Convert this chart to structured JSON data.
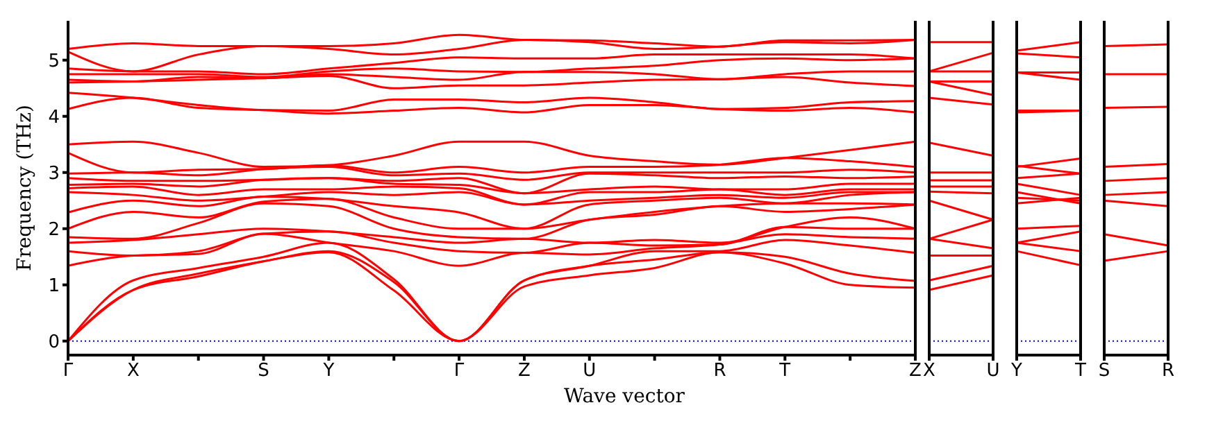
{
  "chart_data": [
    {
      "type": "line",
      "ylabel": "Frequency (THz)",
      "xlabel": "Wave vector",
      "categories": [
        "Γ",
        "X",
        null,
        "S",
        "Y",
        null,
        "Γ",
        "Z",
        "U",
        null,
        "R",
        "T",
        null,
        "Z"
      ],
      "ylim": [
        -0.25,
        5.7
      ],
      "yticks": [
        0,
        1,
        2,
        3,
        4,
        5
      ],
      "ref_lines": [
        {
          "axis": "y",
          "value": 0,
          "color": "#0000ff",
          "line_style": "dotted"
        }
      ],
      "series": [
        {
          "color": "#ff0000",
          "values": [
            0,
            0.91,
            1.15,
            1.42,
            1.58,
            0.9,
            0,
            0.97,
            1.17,
            1.3,
            1.58,
            1.38,
            1.0,
            0.95
          ]
        },
        {
          "color": "#ff0000",
          "values": [
            0,
            0.91,
            1.2,
            1.42,
            1.6,
            1.05,
            0,
            1.08,
            1.34,
            1.45,
            1.58,
            1.5,
            1.2,
            1.07
          ]
        },
        {
          "color": "#ff0000",
          "values": [
            0,
            1.08,
            1.3,
            1.5,
            1.75,
            1.1,
            0,
            1.08,
            1.34,
            1.6,
            1.6,
            1.8,
            1.7,
            1.57
          ]
        },
        {
          "color": "#ff0000",
          "values": [
            1.34,
            1.52,
            1.55,
            1.91,
            1.75,
            1.6,
            1.34,
            1.57,
            1.54,
            1.65,
            1.72,
            1.9,
            1.85,
            1.82
          ]
        },
        {
          "color": "#ff0000",
          "values": [
            1.6,
            1.52,
            1.6,
            1.91,
            1.95,
            1.75,
            1.6,
            1.57,
            1.75,
            1.7,
            1.72,
            2.03,
            2.0,
            2.0
          ]
        },
        {
          "color": "#ff0000",
          "values": [
            1.75,
            1.8,
            1.9,
            2.0,
            1.95,
            1.85,
            1.75,
            1.82,
            1.75,
            1.8,
            1.75,
            2.03,
            2.2,
            2.0
          ]
        },
        {
          "color": "#ff0000",
          "values": [
            1.85,
            1.82,
            2.1,
            2.45,
            2.4,
            2.0,
            1.85,
            1.82,
            2.16,
            2.25,
            2.4,
            2.3,
            2.35,
            2.43
          ]
        },
        {
          "color": "#ff0000",
          "values": [
            2.0,
            2.3,
            2.2,
            2.48,
            2.53,
            2.2,
            2.0,
            2.0,
            2.16,
            2.3,
            2.4,
            2.45,
            2.45,
            2.43
          ]
        },
        {
          "color": "#ff0000",
          "values": [
            2.29,
            2.5,
            2.4,
            2.57,
            2.53,
            2.4,
            2.29,
            2.0,
            2.43,
            2.5,
            2.55,
            2.45,
            2.6,
            2.65
          ]
        },
        {
          "color": "#ff0000",
          "values": [
            2.65,
            2.6,
            2.5,
            2.57,
            2.65,
            2.6,
            2.65,
            2.43,
            2.5,
            2.55,
            2.6,
            2.55,
            2.65,
            2.65
          ]
        },
        {
          "color": "#ff0000",
          "values": [
            2.72,
            2.75,
            2.6,
            2.7,
            2.7,
            2.75,
            2.72,
            2.43,
            2.65,
            2.65,
            2.7,
            2.6,
            2.7,
            2.7
          ]
        },
        {
          "color": "#ff0000",
          "values": [
            2.78,
            2.8,
            2.75,
            2.87,
            2.9,
            2.8,
            2.78,
            2.63,
            2.7,
            2.75,
            2.7,
            2.7,
            2.8,
            2.8
          ]
        },
        {
          "color": "#ff0000",
          "values": [
            2.9,
            2.85,
            2.85,
            2.87,
            2.9,
            2.85,
            2.9,
            2.63,
            2.98,
            2.95,
            2.9,
            2.93,
            2.9,
            2.93
          ]
        },
        {
          "color": "#ff0000",
          "values": [
            2.98,
            3.0,
            2.95,
            3.06,
            3.1,
            2.95,
            2.98,
            2.87,
            3.0,
            3.0,
            3.0,
            3.0,
            3.05,
            3.0
          ]
        },
        {
          "color": "#ff0000",
          "values": [
            3.35,
            3.0,
            3.05,
            3.06,
            3.13,
            3.0,
            3.1,
            3.0,
            3.1,
            3.1,
            3.14,
            3.26,
            3.2,
            3.1
          ]
        },
        {
          "color": "#ff0000",
          "values": [
            3.5,
            3.55,
            3.35,
            3.1,
            3.13,
            3.3,
            3.55,
            3.55,
            3.3,
            3.2,
            3.14,
            3.26,
            3.4,
            3.55
          ]
        },
        {
          "color": "#ff0000",
          "values": [
            4.13,
            4.33,
            4.15,
            4.11,
            4.05,
            4.1,
            4.15,
            4.07,
            4.2,
            4.2,
            4.13,
            4.1,
            4.15,
            4.07
          ]
        },
        {
          "color": "#ff0000",
          "values": [
            4.42,
            4.33,
            4.2,
            4.11,
            4.1,
            4.3,
            4.3,
            4.25,
            4.33,
            4.25,
            4.13,
            4.15,
            4.25,
            4.27
          ]
        },
        {
          "color": "#ff0000",
          "values": [
            4.6,
            4.62,
            4.65,
            4.68,
            4.72,
            4.5,
            4.55,
            4.55,
            4.6,
            4.65,
            4.66,
            4.7,
            4.6,
            4.54
          ]
        },
        {
          "color": "#ff0000",
          "values": [
            4.65,
            4.62,
            4.7,
            4.68,
            4.75,
            4.7,
            4.65,
            4.79,
            4.79,
            4.75,
            4.66,
            4.75,
            4.8,
            4.8
          ]
        },
        {
          "color": "#ff0000",
          "values": [
            4.75,
            4.75,
            4.75,
            4.7,
            4.8,
            4.85,
            4.8,
            4.79,
            4.85,
            4.9,
            5.0,
            5.03,
            5.0,
            5.03
          ]
        },
        {
          "color": "#ff0000",
          "values": [
            4.85,
            4.8,
            4.8,
            4.75,
            4.85,
            4.95,
            5.05,
            5.03,
            5.03,
            5.1,
            5.1,
            5.1,
            5.1,
            5.03
          ]
        },
        {
          "color": "#ff0000",
          "values": [
            5.15,
            4.8,
            5.1,
            5.25,
            5.2,
            5.1,
            5.2,
            5.36,
            5.32,
            5.2,
            5.24,
            5.32,
            5.3,
            5.36
          ]
        },
        {
          "color": "#ff0000",
          "values": [
            5.2,
            5.3,
            5.25,
            5.25,
            5.25,
            5.3,
            5.45,
            5.36,
            5.35,
            5.3,
            5.24,
            5.35,
            5.35,
            5.36
          ]
        }
      ]
    },
    {
      "type": "line",
      "categories": [
        "X",
        "U"
      ],
      "ylim": [
        -0.25,
        5.7
      ],
      "yticks": [
        0,
        1,
        2,
        3,
        4,
        5
      ],
      "tick_labels": "x",
      "ref_lines": [
        {
          "axis": "y",
          "value": 0,
          "color": "#0000ff",
          "line_style": "dotted"
        }
      ],
      "series": [
        {
          "color": "#ff0000",
          "values": [
            0.91,
            1.17
          ]
        },
        {
          "color": "#ff0000",
          "values": [
            1.08,
            1.34
          ]
        },
        {
          "color": "#ff0000",
          "values": [
            1.52,
            1.52
          ]
        },
        {
          "color": "#ff0000",
          "values": [
            1.82,
            1.65
          ]
        },
        {
          "color": "#ff0000",
          "values": [
            1.82,
            2.16
          ]
        },
        {
          "color": "#ff0000",
          "values": [
            2.5,
            2.16
          ]
        },
        {
          "color": "#ff0000",
          "values": [
            2.66,
            2.63
          ]
        },
        {
          "color": "#ff0000",
          "values": [
            2.75,
            2.75
          ]
        },
        {
          "color": "#ff0000",
          "values": [
            2.86,
            2.86
          ]
        },
        {
          "color": "#ff0000",
          "values": [
            3.0,
            3.0
          ]
        },
        {
          "color": "#ff0000",
          "values": [
            3.53,
            3.3
          ]
        },
        {
          "color": "#ff0000",
          "values": [
            4.33,
            4.21
          ]
        },
        {
          "color": "#ff0000",
          "values": [
            4.62,
            4.38
          ]
        },
        {
          "color": "#ff0000",
          "values": [
            4.62,
            4.62
          ]
        },
        {
          "color": "#ff0000",
          "values": [
            4.8,
            4.8
          ]
        },
        {
          "color": "#ff0000",
          "values": [
            4.8,
            5.13
          ]
        },
        {
          "color": "#ff0000",
          "values": [
            5.32,
            5.32
          ]
        }
      ]
    },
    {
      "type": "line",
      "categories": [
        "Y",
        "T"
      ],
      "ylim": [
        -0.25,
        5.7
      ],
      "yticks": [
        0,
        1,
        2,
        3,
        4,
        5
      ],
      "tick_labels": "x",
      "ref_lines": [
        {
          "axis": "y",
          "value": 0,
          "color": "#0000ff",
          "line_style": "dotted"
        }
      ],
      "series": [
        {
          "color": "#ff0000",
          "values": [
            1.6,
            1.35
          ]
        },
        {
          "color": "#ff0000",
          "values": [
            1.75,
            1.6
          ]
        },
        {
          "color": "#ff0000",
          "values": [
            1.75,
            1.95
          ]
        },
        {
          "color": "#ff0000",
          "values": [
            2.0,
            2.05
          ]
        },
        {
          "color": "#ff0000",
          "values": [
            2.45,
            2.55
          ]
        },
        {
          "color": "#ff0000",
          "values": [
            2.55,
            2.5
          ]
        },
        {
          "color": "#ff0000",
          "values": [
            2.65,
            2.45
          ]
        },
        {
          "color": "#ff0000",
          "values": [
            2.8,
            2.6
          ]
        },
        {
          "color": "#ff0000",
          "values": [
            2.9,
            2.98
          ]
        },
        {
          "color": "#ff0000",
          "values": [
            3.12,
            2.98
          ]
        },
        {
          "color": "#ff0000",
          "values": [
            3.1,
            3.25
          ]
        },
        {
          "color": "#ff0000",
          "values": [
            4.07,
            4.1
          ]
        },
        {
          "color": "#ff0000",
          "values": [
            4.1,
            4.1
          ]
        },
        {
          "color": "#ff0000",
          "values": [
            4.78,
            4.65
          ]
        },
        {
          "color": "#ff0000",
          "values": [
            4.78,
            4.78
          ]
        },
        {
          "color": "#ff0000",
          "values": [
            5.12,
            5.05
          ]
        },
        {
          "color": "#ff0000",
          "values": [
            5.17,
            5.32
          ]
        }
      ]
    },
    {
      "type": "line",
      "categories": [
        "S",
        "R"
      ],
      "ylim": [
        -0.25,
        5.7
      ],
      "yticks": [
        0,
        1,
        2,
        3,
        4,
        5
      ],
      "tick_labels": "x",
      "ref_lines": [
        {
          "axis": "y",
          "value": 0,
          "color": "#0000ff",
          "line_style": "dotted"
        }
      ],
      "series": [
        {
          "color": "#ff0000",
          "values": [
            1.43,
            1.6
          ]
        },
        {
          "color": "#ff0000",
          "values": [
            1.9,
            1.7
          ]
        },
        {
          "color": "#ff0000",
          "values": [
            2.5,
            2.4
          ]
        },
        {
          "color": "#ff0000",
          "values": [
            2.6,
            2.65
          ]
        },
        {
          "color": "#ff0000",
          "values": [
            2.85,
            2.9
          ]
        },
        {
          "color": "#ff0000",
          "values": [
            3.1,
            3.15
          ]
        },
        {
          "color": "#ff0000",
          "values": [
            4.15,
            4.17
          ]
        },
        {
          "color": "#ff0000",
          "values": [
            4.75,
            4.75
          ]
        },
        {
          "color": "#ff0000",
          "values": [
            5.25,
            5.28
          ]
        }
      ]
    }
  ]
}
